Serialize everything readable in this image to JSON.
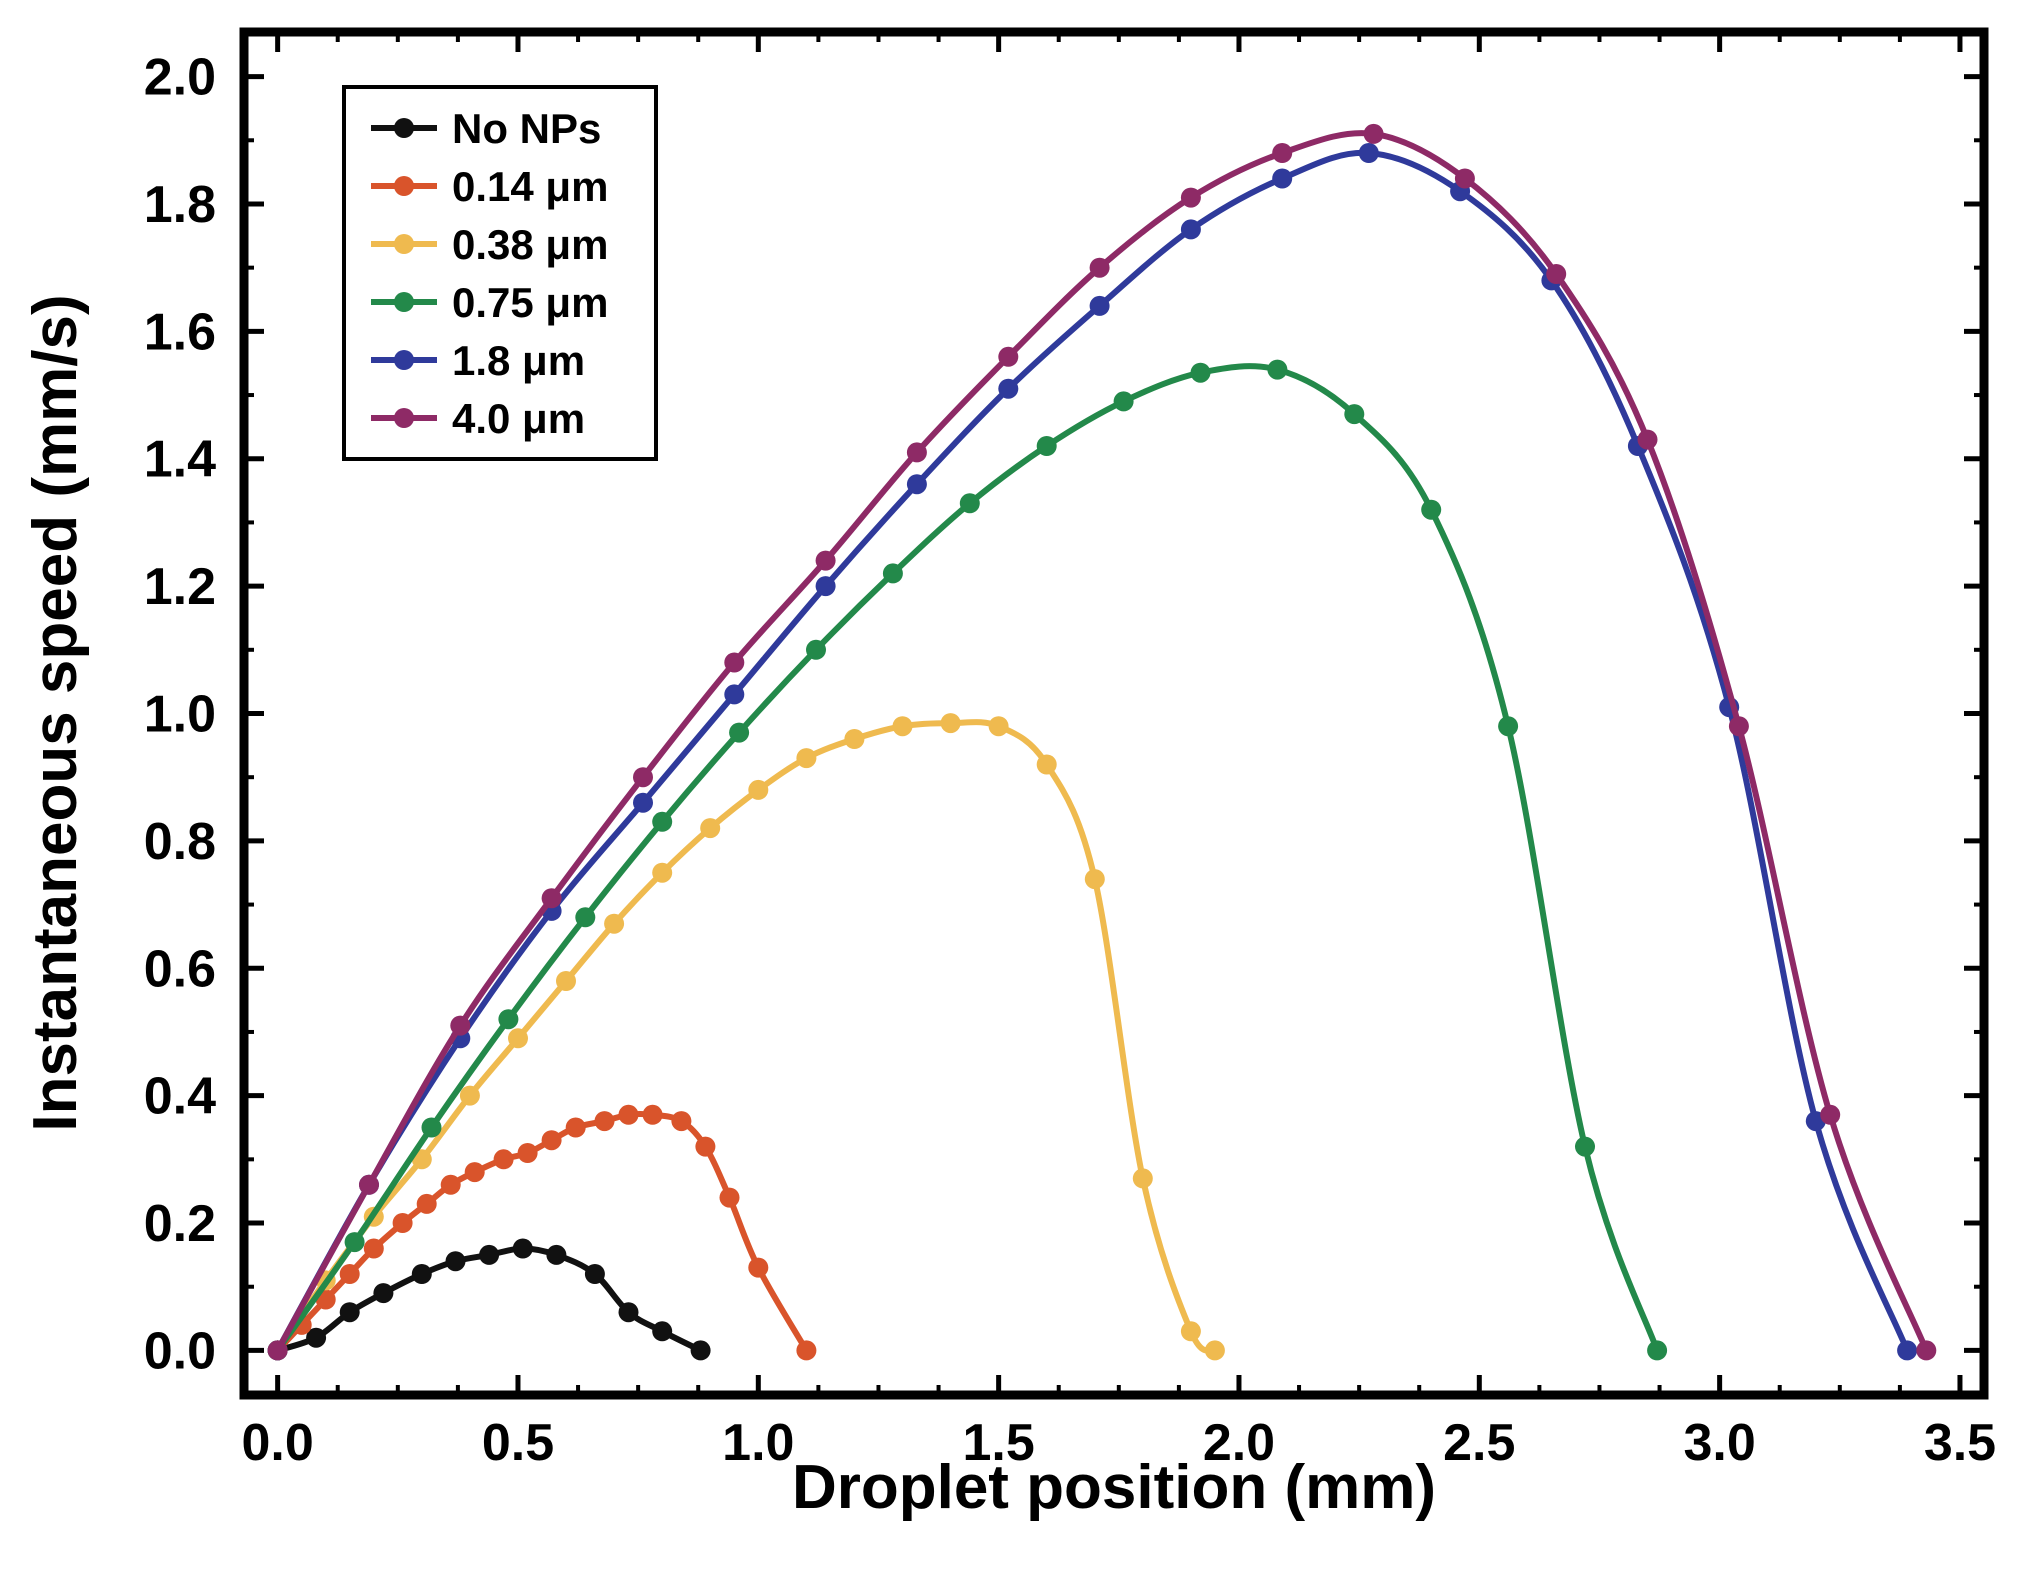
{
  "chart_data": {
    "type": "line",
    "title": "",
    "xlabel": "Droplet position (mm)",
    "ylabel": "Instantaneous speed (mm/s)",
    "xlim": [
      -0.07,
      3.55
    ],
    "ylim": [
      -0.07,
      2.07
    ],
    "xticks": [
      "0.0",
      "0.5",
      "1.0",
      "1.5",
      "2.0",
      "2.5",
      "3.0",
      "3.5"
    ],
    "yticks": [
      "0.0",
      "0.2",
      "0.4",
      "0.6",
      "0.8",
      "1.0",
      "1.2",
      "1.4",
      "1.6",
      "1.8",
      "2.0"
    ],
    "legend_position": "top-left",
    "series": [
      {
        "name": "No NPs",
        "color": "#111111",
        "x": [
          0.0,
          0.08,
          0.15,
          0.22,
          0.3,
          0.37,
          0.44,
          0.51,
          0.58,
          0.66,
          0.73,
          0.8,
          0.88
        ],
        "y": [
          0.0,
          0.02,
          0.06,
          0.09,
          0.12,
          0.14,
          0.15,
          0.16,
          0.15,
          0.12,
          0.06,
          0.03,
          0.0
        ]
      },
      {
        "name": "0.14 μm",
        "color": "#D9542B",
        "x": [
          0.0,
          0.05,
          0.1,
          0.15,
          0.2,
          0.26,
          0.31,
          0.36,
          0.41,
          0.47,
          0.52,
          0.57,
          0.62,
          0.68,
          0.73,
          0.78,
          0.84,
          0.89,
          0.94,
          1.0,
          1.1
        ],
        "y": [
          0.0,
          0.04,
          0.08,
          0.12,
          0.16,
          0.2,
          0.23,
          0.26,
          0.28,
          0.3,
          0.31,
          0.33,
          0.35,
          0.36,
          0.37,
          0.37,
          0.36,
          0.32,
          0.24,
          0.13,
          0.0
        ]
      },
      {
        "name": "0.38 μm",
        "color": "#EFBA4F",
        "x": [
          0.0,
          0.1,
          0.2,
          0.3,
          0.4,
          0.5,
          0.6,
          0.7,
          0.8,
          0.9,
          1.0,
          1.1,
          1.2,
          1.3,
          1.4,
          1.5,
          1.6,
          1.7,
          1.8,
          1.9,
          1.95
        ],
        "y": [
          0.0,
          0.11,
          0.21,
          0.3,
          0.4,
          0.49,
          0.58,
          0.67,
          0.75,
          0.82,
          0.88,
          0.93,
          0.96,
          0.98,
          0.985,
          0.98,
          0.92,
          0.74,
          0.27,
          0.03,
          0.0
        ]
      },
      {
        "name": "0.75 μm",
        "color": "#23894A",
        "x": [
          0.0,
          0.16,
          0.32,
          0.48,
          0.64,
          0.8,
          0.96,
          1.12,
          1.28,
          1.44,
          1.6,
          1.76,
          1.92,
          2.08,
          2.24,
          2.4,
          2.56,
          2.72,
          2.87
        ],
        "y": [
          0.0,
          0.17,
          0.35,
          0.52,
          0.68,
          0.83,
          0.97,
          1.1,
          1.22,
          1.33,
          1.42,
          1.49,
          1.535,
          1.54,
          1.47,
          1.32,
          0.98,
          0.32,
          0.0
        ]
      },
      {
        "name": "1.8 μm",
        "color": "#2F3A9B",
        "x": [
          0.0,
          0.19,
          0.38,
          0.57,
          0.76,
          0.95,
          1.14,
          1.33,
          1.52,
          1.71,
          1.9,
          2.09,
          2.27,
          2.46,
          2.65,
          2.83,
          3.02,
          3.2,
          3.39
        ],
        "y": [
          0.0,
          0.26,
          0.49,
          0.69,
          0.86,
          1.03,
          1.2,
          1.36,
          1.51,
          1.64,
          1.76,
          1.84,
          1.88,
          1.82,
          1.68,
          1.42,
          1.01,
          0.36,
          0.0
        ]
      },
      {
        "name": "4.0 μm",
        "color": "#8E2A66",
        "x": [
          0.0,
          0.19,
          0.38,
          0.57,
          0.76,
          0.95,
          1.14,
          1.33,
          1.52,
          1.71,
          1.9,
          2.09,
          2.28,
          2.47,
          2.66,
          2.85,
          3.04,
          3.23,
          3.43
        ],
        "y": [
          0.0,
          0.26,
          0.51,
          0.71,
          0.9,
          1.08,
          1.24,
          1.41,
          1.56,
          1.7,
          1.81,
          1.88,
          1.91,
          1.84,
          1.69,
          1.43,
          0.98,
          0.37,
          0.0
        ]
      }
    ]
  }
}
